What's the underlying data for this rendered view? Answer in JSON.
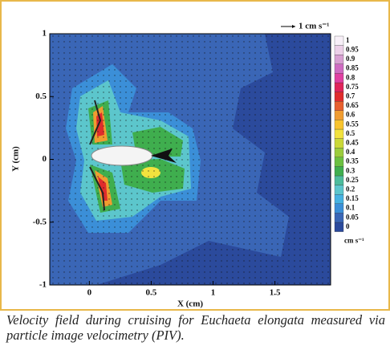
{
  "chart_data": {
    "type": "contour",
    "x_label": "X (cm)",
    "y_label": "Y (cm)",
    "xlim": [
      -0.32,
      1.95
    ],
    "xticks": [
      0,
      0.5,
      1,
      1.5
    ],
    "ylim": [
      -1,
      1
    ],
    "yticks": [
      1,
      0.5,
      0,
      -0.5,
      -1
    ],
    "reference_arrow": "1 cm s⁻¹",
    "colorbar": {
      "unit": "cm s⁻¹",
      "levels": [
        0,
        0.05,
        0.1,
        0.15,
        0.2,
        0.25,
        0.3,
        0.35,
        0.4,
        0.45,
        0.5,
        0.55,
        0.6,
        0.65,
        0.7,
        0.75,
        0.8,
        0.85,
        0.9,
        0.95,
        1
      ],
      "colors": [
        "#2b4a9c",
        "#3a66b6",
        "#3b8fd8",
        "#46b3e2",
        "#5cc6cc",
        "#4dbc9c",
        "#3fae4e",
        "#6cc040",
        "#9ccc3c",
        "#cad838",
        "#f2e23e",
        "#f8c42e",
        "#f09c30",
        "#e8602e",
        "#e02c2c",
        "#e0245a",
        "#e040a2",
        "#cf6cc2",
        "#d8a0d2",
        "#ecd0e8",
        "#f8f0f8"
      ]
    },
    "caption": "Velocity field during cruising for Euchaeta elongata measured via particle image velocimetry (PIV)."
  }
}
